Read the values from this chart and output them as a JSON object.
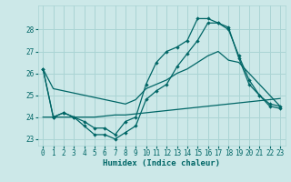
{
  "xlabel": "Humidex (Indice chaleur)",
  "bg_color": "#cce8e8",
  "grid_color": "#aad4d4",
  "line_color": "#006666",
  "xlim": [
    -0.5,
    23.5
  ],
  "ylim": [
    22.7,
    29.1
  ],
  "yticks": [
    23,
    24,
    25,
    26,
    27,
    28
  ],
  "xticks": [
    0,
    1,
    2,
    3,
    4,
    5,
    6,
    7,
    8,
    9,
    10,
    11,
    12,
    13,
    14,
    15,
    16,
    17,
    18,
    19,
    20,
    21,
    22,
    23
  ],
  "line1_x": [
    0,
    1,
    2,
    3,
    4,
    5,
    6,
    7,
    8,
    9,
    10,
    11,
    12,
    13,
    14,
    15,
    16,
    17,
    18,
    19,
    20,
    21,
    22,
    23
  ],
  "line1_y": [
    24.0,
    24.0,
    24.0,
    24.0,
    24.0,
    24.0,
    24.05,
    24.1,
    24.1,
    24.15,
    24.2,
    24.25,
    24.3,
    24.35,
    24.4,
    24.45,
    24.5,
    24.55,
    24.6,
    24.65,
    24.7,
    24.75,
    24.8,
    24.85
  ],
  "line2_x": [
    0,
    1,
    2,
    3,
    4,
    5,
    6,
    7,
    8,
    9,
    10,
    11,
    12,
    13,
    14,
    15,
    16,
    17,
    18,
    19,
    20,
    21,
    22,
    23
  ],
  "line2_y": [
    26.2,
    25.3,
    25.2,
    25.1,
    25.0,
    24.9,
    24.8,
    24.7,
    24.6,
    24.8,
    25.3,
    25.5,
    25.7,
    26.0,
    26.2,
    26.5,
    26.8,
    27.0,
    26.6,
    26.5,
    26.0,
    25.5,
    25.0,
    24.5
  ],
  "line3_x": [
    0,
    1,
    2,
    3,
    4,
    5,
    6,
    7,
    8,
    9,
    10,
    11,
    12,
    13,
    14,
    15,
    16,
    17,
    18,
    19,
    20,
    21,
    22,
    23
  ],
  "line3_y": [
    26.2,
    24.0,
    24.2,
    24.0,
    23.6,
    23.2,
    23.2,
    23.0,
    23.3,
    23.6,
    24.8,
    25.2,
    25.5,
    26.3,
    26.9,
    27.5,
    28.3,
    28.3,
    28.1,
    26.7,
    25.5,
    25.0,
    24.5,
    24.4
  ],
  "line4_x": [
    0,
    1,
    2,
    3,
    4,
    5,
    6,
    7,
    8,
    9,
    10,
    11,
    12,
    13,
    14,
    15,
    16,
    17,
    18,
    19,
    20,
    21,
    22,
    23
  ],
  "line4_y": [
    26.2,
    24.0,
    24.2,
    24.0,
    23.8,
    23.5,
    23.5,
    23.2,
    23.8,
    24.0,
    25.5,
    26.5,
    27.0,
    27.2,
    27.5,
    28.5,
    28.5,
    28.3,
    28.0,
    26.8,
    25.7,
    25.0,
    24.6,
    24.5
  ]
}
